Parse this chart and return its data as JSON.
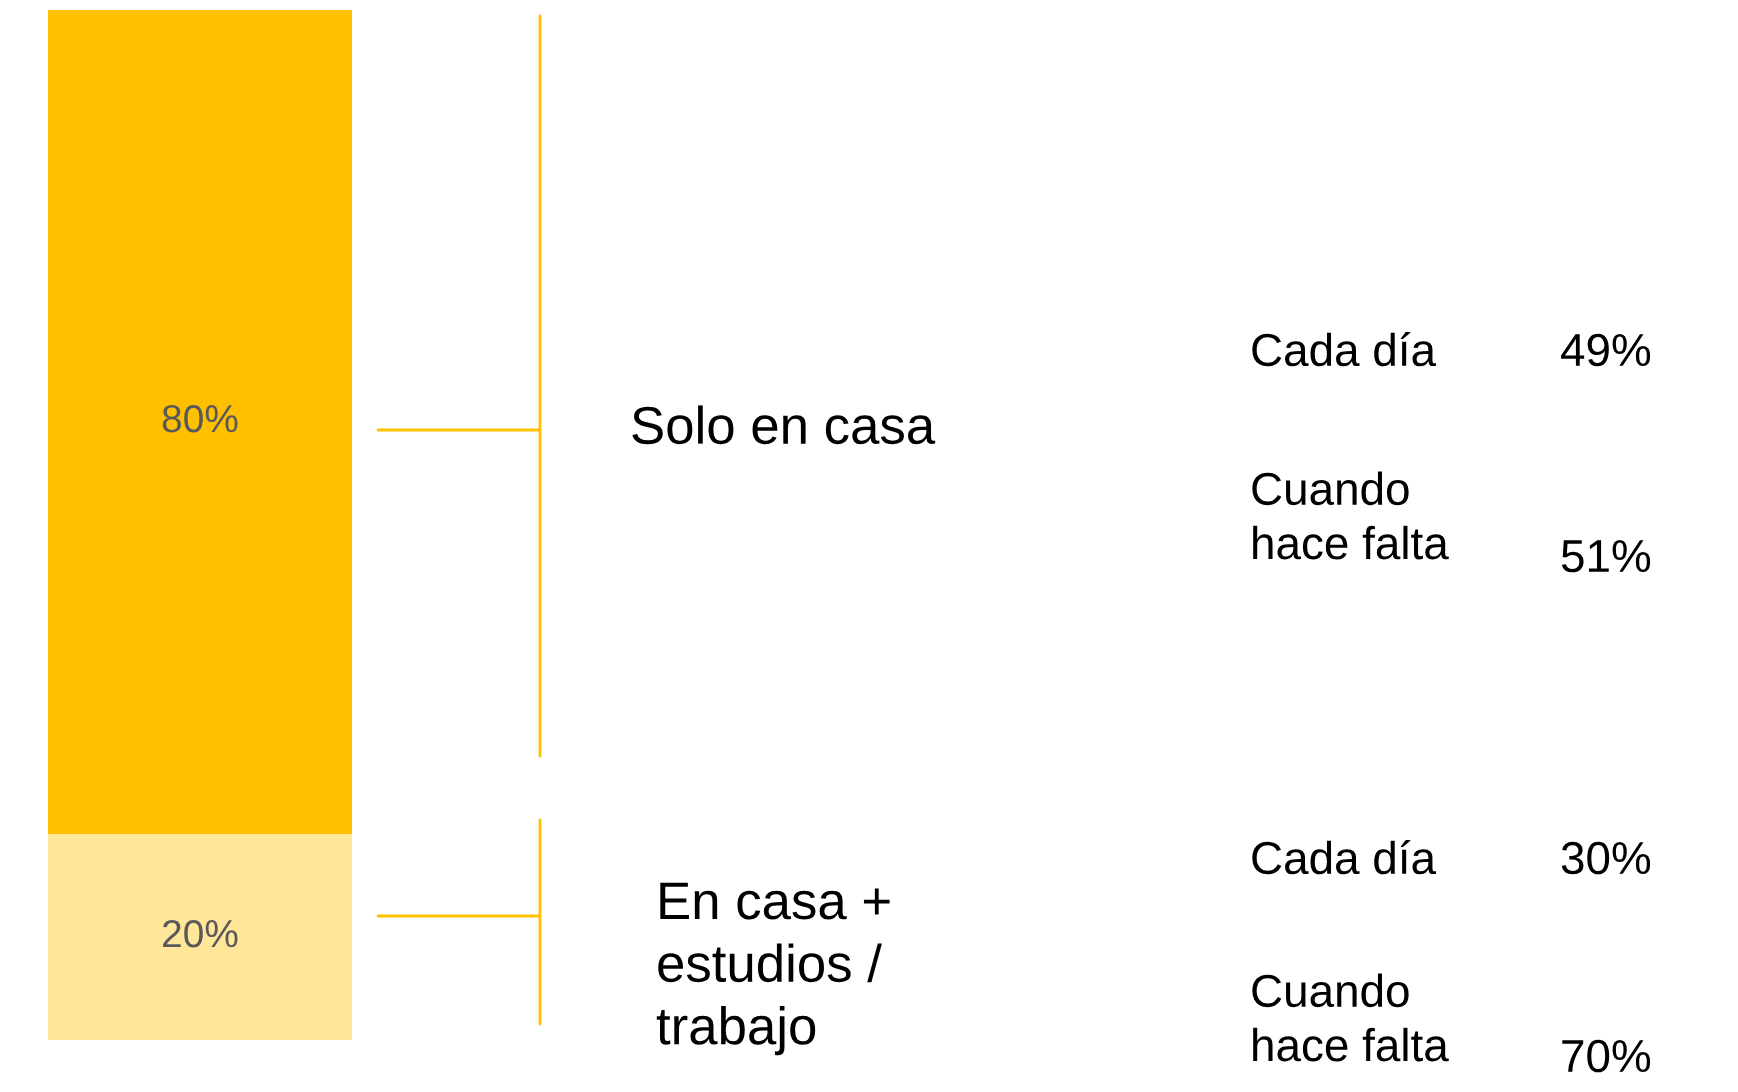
{
  "chart_data": {
    "type": "bar",
    "stacked": true,
    "categories": [
      null
    ],
    "ylim": [
      0,
      100
    ],
    "tick_labels": false,
    "series": [
      {
        "color": "#ffe699",
        "values": [
          20
        ],
        "value_labels": [
          "20%"
        ]
      },
      {
        "color": "#ffc000",
        "values": [
          80
        ],
        "value_labels": [
          "80%"
        ]
      }
    ],
    "annotations": [
      "Solo en casa",
      "Cada día",
      "49%",
      "Cuando\nhace falta",
      "51%",
      "En casa +\nestudios /\ntrabajo",
      "Cada día",
      "30%",
      "Cuando\nhace falta",
      "70%"
    ]
  }
}
